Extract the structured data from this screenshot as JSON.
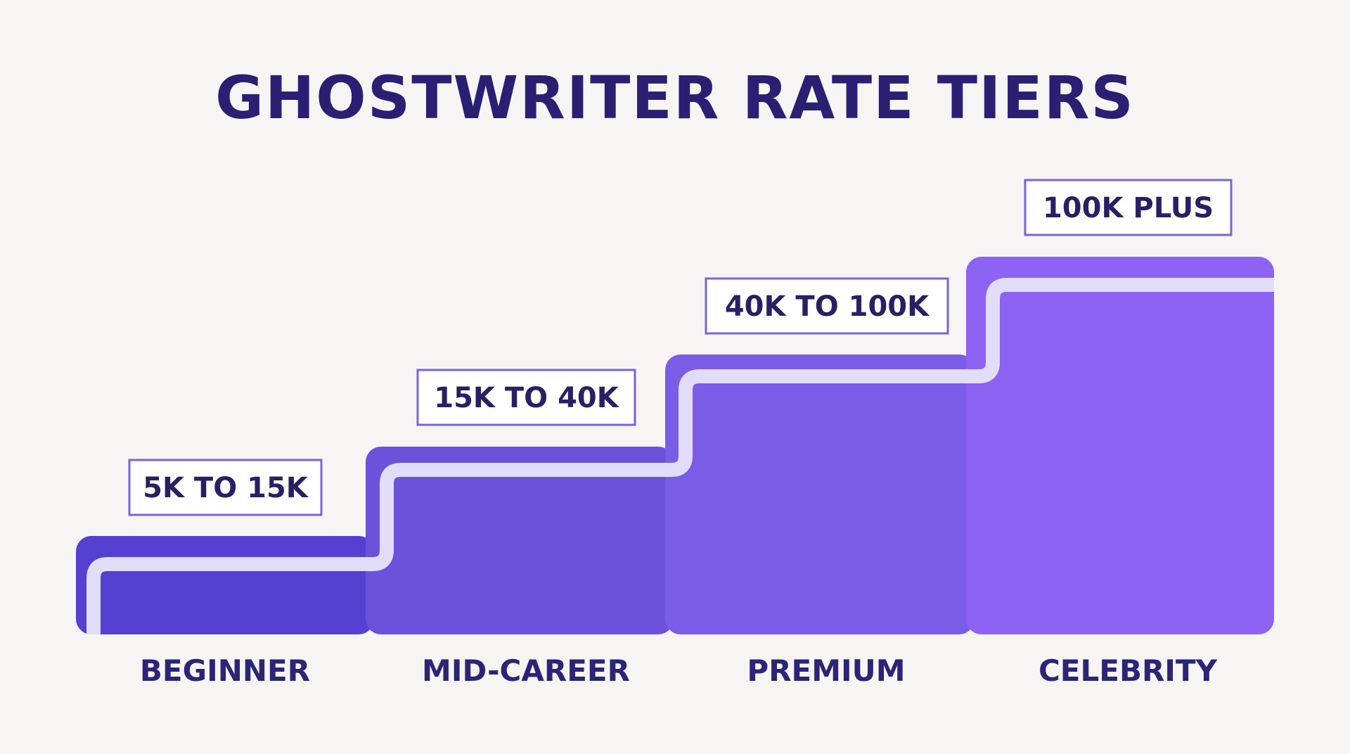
{
  "title": "GHOSTWRITER RATE TIERS",
  "colors": {
    "background": "#f6f5f4",
    "title": "#2a1f73",
    "label_text": "#2c2477",
    "box_border": "#7a63d8",
    "step_path": "#e1ddf8",
    "tiers": [
      "#5540d2",
      "#6a52db",
      "#7a5de6",
      "#8c63f3"
    ]
  },
  "tiers": [
    {
      "name": "BEGINNER",
      "range": "5K TO 15K",
      "level": 1
    },
    {
      "name": "MID-CAREER",
      "range": "15K TO 40K",
      "level": 2
    },
    {
      "name": "PREMIUM",
      "range": "40K TO 100K",
      "level": 3
    },
    {
      "name": "CELEBRITY",
      "range": "100K PLUS",
      "level": 4
    }
  ]
}
